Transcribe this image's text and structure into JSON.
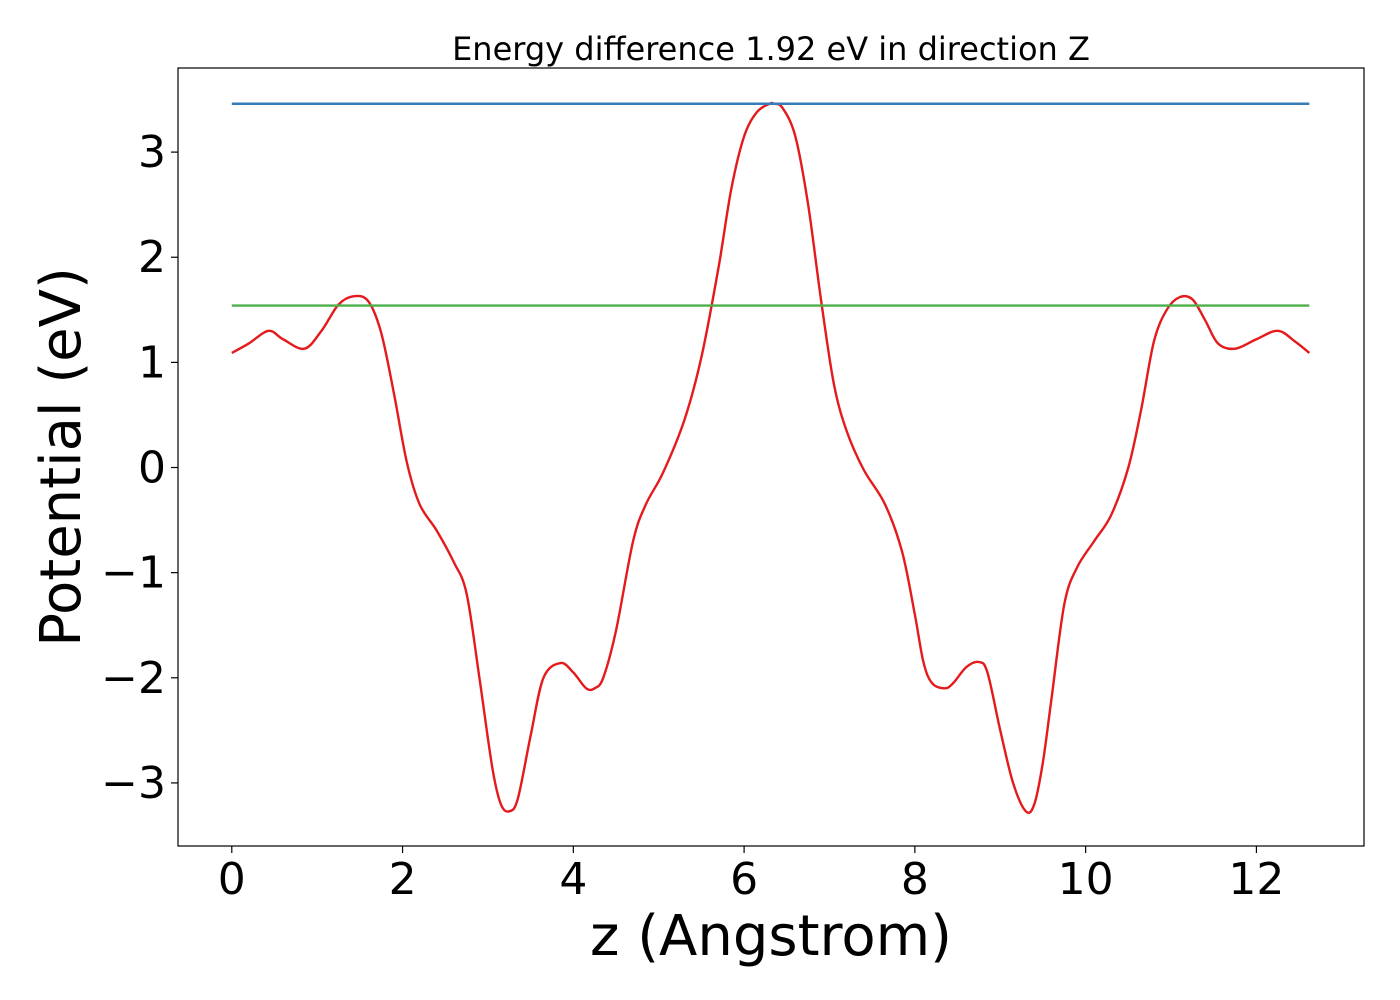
{
  "chart_data": {
    "type": "line",
    "title": "Energy difference 1.92 eV in direction Z",
    "xlabel": "z (Angstrom)",
    "ylabel": "Potential (eV)",
    "xlim": [
      -0.63,
      13.26
    ],
    "ylim": [
      -3.6,
      3.8
    ],
    "xticks": [
      0,
      2,
      4,
      6,
      8,
      10,
      12
    ],
    "xtick_labels": [
      "0",
      "2",
      "4",
      "6",
      "8",
      "10",
      "12"
    ],
    "yticks": [
      -3,
      -2,
      -1,
      0,
      1,
      2,
      3
    ],
    "ytick_labels": [
      "−3",
      "−2",
      "−1",
      "0",
      "1",
      "2",
      "3"
    ],
    "grid": false,
    "series": [
      {
        "color": "#e41a1c",
        "x": [
          0,
          0.2,
          0.43,
          0.6,
          0.85,
          1.05,
          1.25,
          1.43,
          1.6,
          1.75,
          1.9,
          2.05,
          2.2,
          2.4,
          2.6,
          2.75,
          2.9,
          3.05,
          3.15,
          3.25,
          3.35,
          3.5,
          3.65,
          3.85,
          4.0,
          4.15,
          4.25,
          4.35,
          4.5,
          4.7,
          4.85,
          5.05,
          5.3,
          5.5,
          5.7,
          5.85,
          6.0,
          6.15,
          6.3,
          6.35,
          6.45,
          6.6,
          6.75,
          6.9,
          7.05,
          7.2,
          7.4,
          7.65,
          7.85,
          8.0,
          8.1,
          8.2,
          8.35,
          8.45,
          8.6,
          8.75,
          8.85,
          9.0,
          9.15,
          9.3,
          9.4,
          9.5,
          9.6,
          9.75,
          9.9,
          10.1,
          10.3,
          10.5,
          10.65,
          10.8,
          10.95,
          11.1,
          11.25,
          11.4,
          11.55,
          11.75,
          12.0,
          12.25,
          12.45,
          12.62
        ],
        "y": [
          1.09,
          1.18,
          1.3,
          1.22,
          1.13,
          1.3,
          1.55,
          1.63,
          1.58,
          1.28,
          0.7,
          0.05,
          -0.35,
          -0.6,
          -0.9,
          -1.2,
          -2.0,
          -2.85,
          -3.2,
          -3.27,
          -3.15,
          -2.55,
          -2.0,
          -1.86,
          -1.95,
          -2.1,
          -2.1,
          -2.0,
          -1.55,
          -0.7,
          -0.35,
          -0.05,
          0.45,
          1.05,
          1.9,
          2.65,
          3.15,
          3.38,
          3.46,
          3.46,
          3.42,
          3.15,
          2.5,
          1.6,
          0.8,
          0.35,
          -0.02,
          -0.35,
          -0.8,
          -1.4,
          -1.85,
          -2.05,
          -2.1,
          -2.05,
          -1.9,
          -1.85,
          -1.95,
          -2.5,
          -3.0,
          -3.27,
          -3.2,
          -2.8,
          -2.2,
          -1.3,
          -0.95,
          -0.7,
          -0.45,
          0.0,
          0.55,
          1.2,
          1.5,
          1.62,
          1.6,
          1.4,
          1.18,
          1.13,
          1.22,
          1.3,
          1.2,
          1.09
        ]
      },
      {
        "color": "#377eb8",
        "x": [
          0,
          12.62
        ],
        "y": [
          3.46,
          3.46
        ]
      },
      {
        "color": "#4daf4a",
        "x": [
          0,
          12.62
        ],
        "y": [
          1.54,
          1.54
        ]
      }
    ]
  }
}
